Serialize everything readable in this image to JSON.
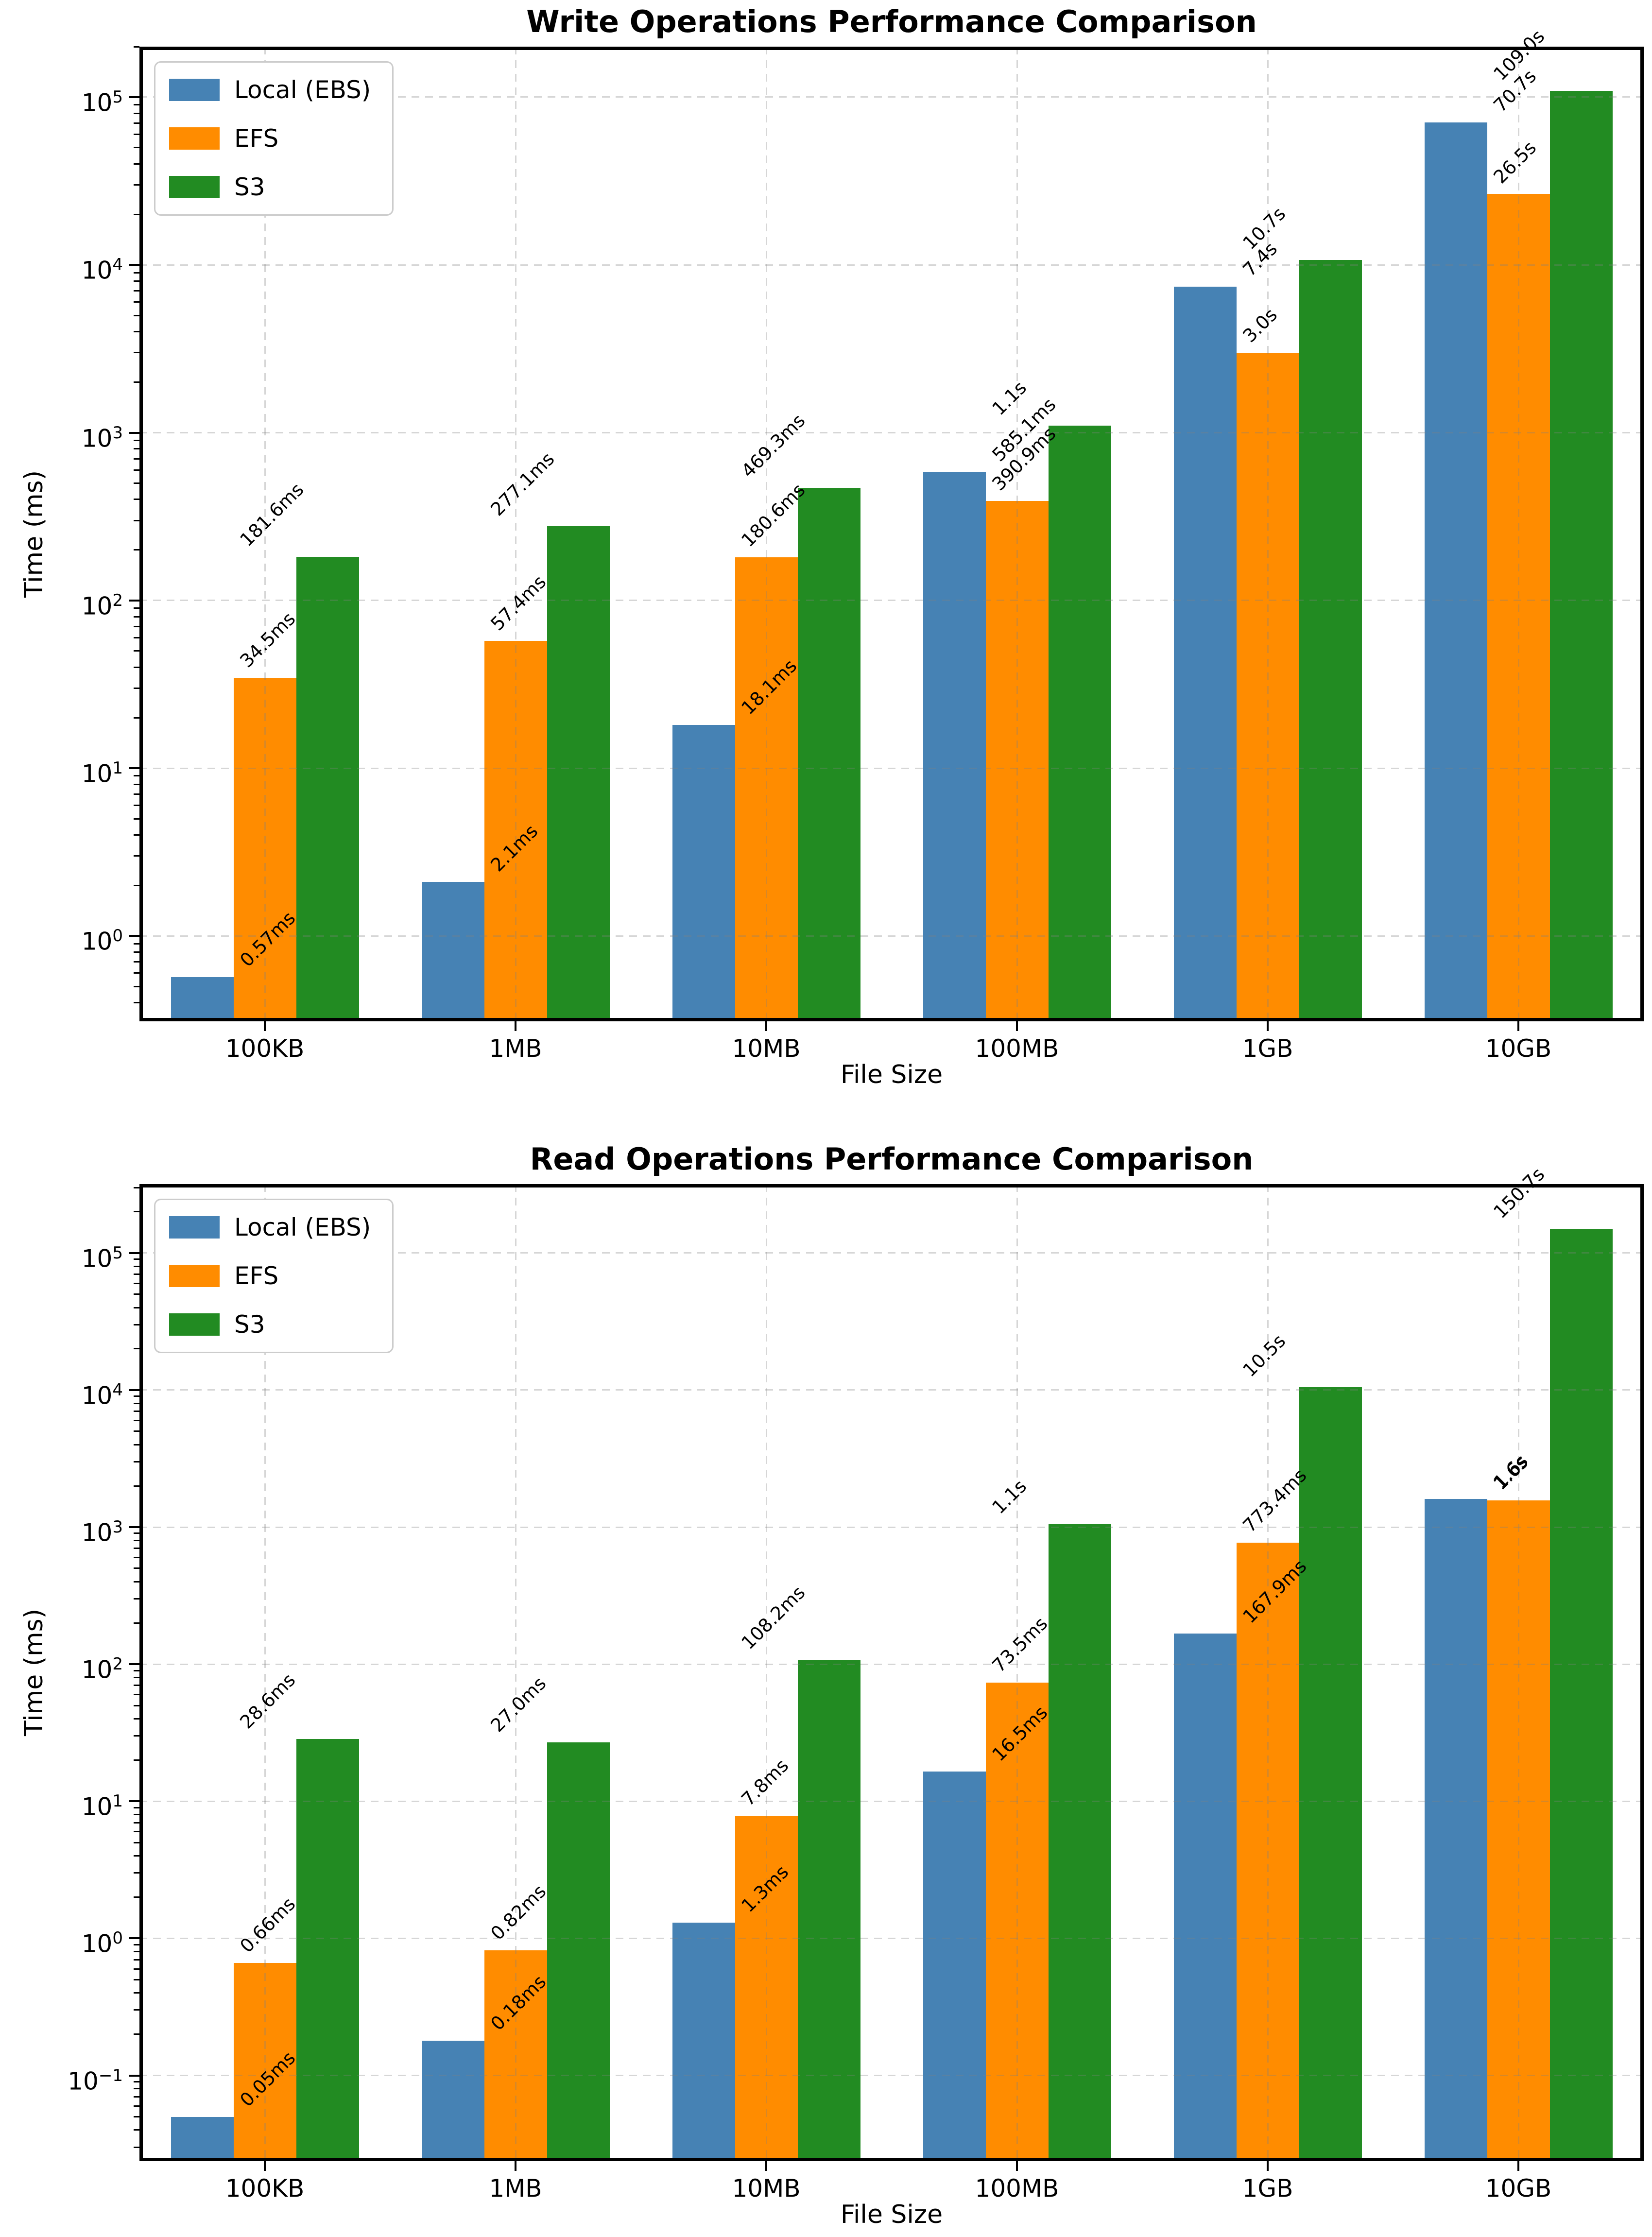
{
  "chart_data": [
    {
      "type": "bar",
      "title": "Write Operations Performance Comparison",
      "xlabel": "File Size",
      "ylabel": "Time (ms)",
      "yscale": "log",
      "ylim": [
        0.31,
        200000
      ],
      "ytick_exponents": [
        0,
        1,
        2,
        3,
        4,
        5
      ],
      "grid": true,
      "legend_position": "upper left",
      "categories": [
        "100KB",
        "1MB",
        "10MB",
        "100MB",
        "1GB",
        "10GB"
      ],
      "series": [
        {
          "name": "Local (EBS)",
          "color": "#4682B4",
          "values": [
            0.57,
            2.1,
            18.1,
            585.1,
            7400,
            70700
          ],
          "labels": [
            "0.57ms",
            "2.1ms",
            "18.1ms",
            "585.1ms",
            "7.4s",
            "70.7s"
          ]
        },
        {
          "name": "EFS",
          "color": "#FF8C00",
          "values": [
            34.5,
            57.4,
            180.6,
            390.9,
            3000,
            26500
          ],
          "labels": [
            "34.5ms",
            "57.4ms",
            "180.6ms",
            "390.9ms",
            "3.0s",
            "26.5s"
          ]
        },
        {
          "name": "S3",
          "color": "#228B22",
          "values": [
            181.6,
            277.1,
            469.3,
            1100,
            10700,
            109000
          ],
          "labels": [
            "181.6ms",
            "277.1ms",
            "469.3ms",
            "1.1s",
            "10.7s",
            "109.0s"
          ]
        }
      ]
    },
    {
      "type": "bar",
      "title": "Read Operations Performance Comparison",
      "xlabel": "File Size",
      "ylabel": "Time (ms)",
      "yscale": "log",
      "ylim": [
        0.0237,
        318000
      ],
      "ytick_exponents": [
        -1,
        0,
        1,
        2,
        3,
        4,
        5
      ],
      "grid": true,
      "legend_position": "upper left",
      "categories": [
        "100KB",
        "1MB",
        "10MB",
        "100MB",
        "1GB",
        "10GB"
      ],
      "series": [
        {
          "name": "Local (EBS)",
          "color": "#4682B4",
          "values": [
            0.05,
            0.18,
            1.3,
            16.5,
            167.9,
            1600
          ],
          "labels": [
            "0.05ms",
            "0.18ms",
            "1.3ms",
            "16.5ms",
            "167.9ms",
            "1.6s"
          ]
        },
        {
          "name": "EFS",
          "color": "#FF8C00",
          "values": [
            0.66,
            0.82,
            7.8,
            73.5,
            773.4,
            1570
          ],
          "labels": [
            "0.66ms",
            "0.82ms",
            "7.8ms",
            "73.5ms",
            "773.4ms",
            "1.6s"
          ]
        },
        {
          "name": "S3",
          "color": "#228B22",
          "values": [
            28.6,
            27.0,
            108.2,
            1050,
            10500,
            150700
          ],
          "labels": [
            "28.6ms",
            "27.0ms",
            "108.2ms",
            "1.1s",
            "10.5s",
            "150.7s"
          ]
        }
      ]
    }
  ]
}
